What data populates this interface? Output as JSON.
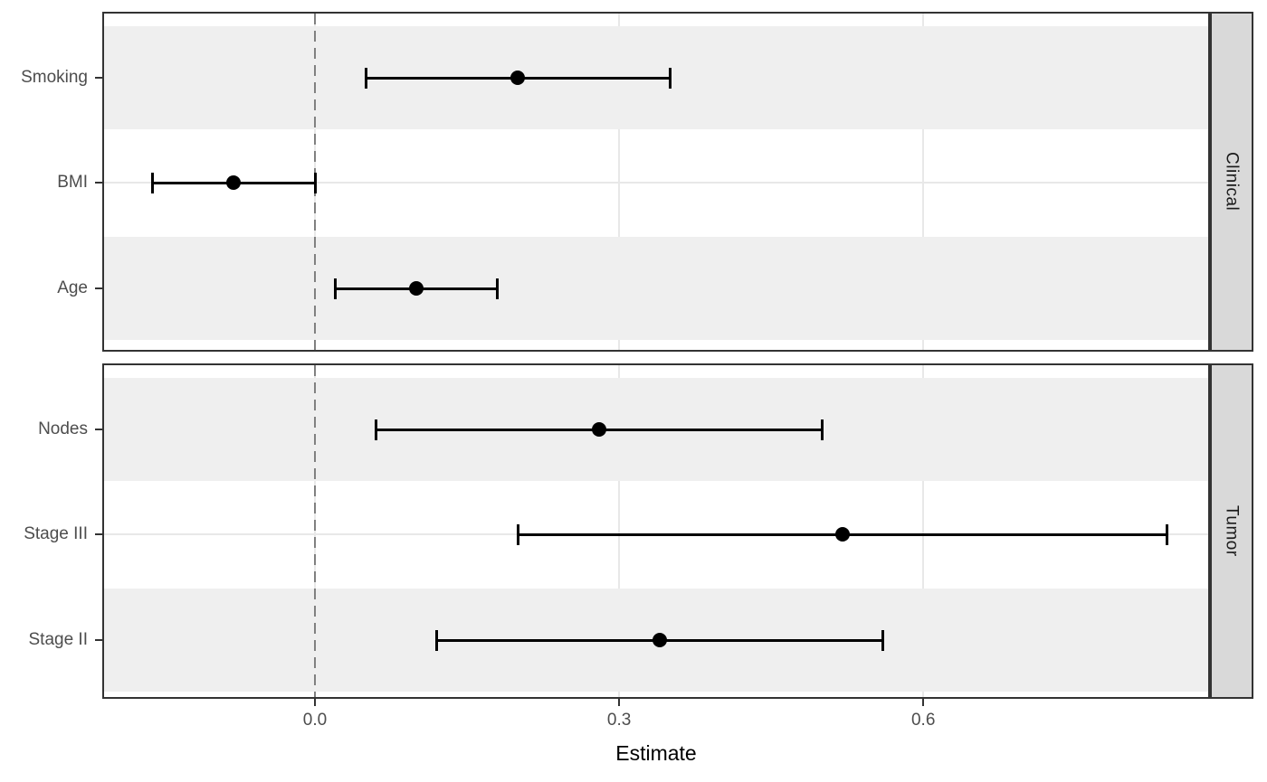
{
  "chart_data": {
    "type": "forest-pointrange",
    "title": "",
    "xlabel": "Estimate",
    "x_ticks": [
      {
        "value": 0.0,
        "label": "0.0"
      },
      {
        "value": 0.3,
        "label": "0.3"
      },
      {
        "value": 0.6,
        "label": "0.6"
      }
    ],
    "x_domain": [
      -0.208,
      0.881
    ],
    "zero_reference_line": 0.0,
    "grid": "major-only",
    "legend_position": "none",
    "facet_strip_side": "right",
    "panels": [
      {
        "label": "Clinical",
        "rows": [
          {
            "label": "Smoking",
            "estimate": 0.2,
            "ci_low": 0.05,
            "ci_high": 0.35,
            "striped": true
          },
          {
            "label": "BMI",
            "estimate": -0.08,
            "ci_low": -0.16,
            "ci_high": 0.0,
            "striped": false
          },
          {
            "label": "Age",
            "estimate": 0.1,
            "ci_low": 0.02,
            "ci_high": 0.18,
            "striped": true
          }
        ]
      },
      {
        "label": "Tumor",
        "rows": [
          {
            "label": "Nodes",
            "estimate": 0.28,
            "ci_low": 0.06,
            "ci_high": 0.5,
            "striped": true
          },
          {
            "label": "Stage III",
            "estimate": 0.52,
            "ci_low": 0.2,
            "ci_high": 0.84,
            "striped": false
          },
          {
            "label": "Stage II",
            "estimate": 0.34,
            "ci_low": 0.12,
            "ci_high": 0.56,
            "striped": true
          }
        ]
      }
    ],
    "colors": {
      "point_and_bar": "#000000",
      "stripe_fill": "#EFEFEF",
      "strip_fill": "#D9D9D9",
      "strip_text": "#1A1A1A",
      "panel_border": "#333333",
      "gridline": "#E8E8E8",
      "zero_line": "#808080",
      "axis_text": "#4D4D4D",
      "axis_title": "#000000"
    }
  }
}
